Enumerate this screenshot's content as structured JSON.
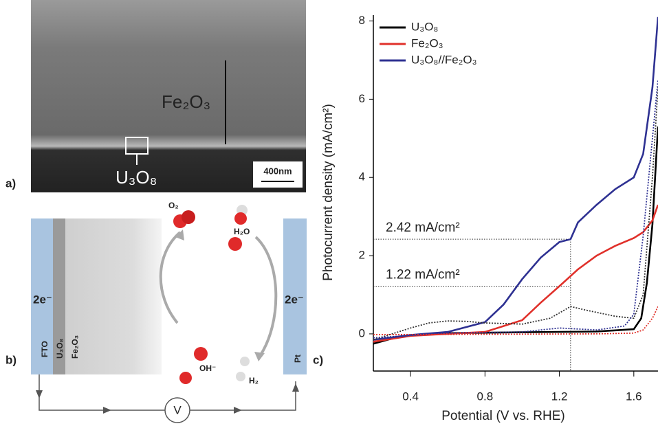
{
  "panel_a": {
    "label": "a)",
    "layer_top": "Fe₂O₃",
    "layer_bottom": "U₃O₈",
    "scale_bar": "400nm"
  },
  "panel_b": {
    "label": "b)",
    "left_electrons": "2e⁻",
    "right_electrons": "2e⁻",
    "fto": "FTO",
    "u3o8": "U₃O₈",
    "fe2o3": "Fe₂O₃",
    "pt": "Pt",
    "o2": "O₂",
    "h2o": "H₂O",
    "oh": "OH⁻",
    "h2": "H₂",
    "meter": "V"
  },
  "chart_data": {
    "type": "line",
    "panel_label": "c)",
    "x_label": "Potential (V vs. RHE)",
    "y_label": "Photocurrent density (mA/cm²)",
    "xlim": [
      0.2,
      1.73
    ],
    "ylim": [
      -0.95,
      8.15
    ],
    "xticks": [
      0.4,
      0.8,
      1.2,
      1.6
    ],
    "yticks": [
      0,
      2,
      4,
      6,
      8
    ],
    "legend": "top-left",
    "series": [
      {
        "name": "U₃O₈",
        "color": "#000000",
        "dash": false,
        "x": [
          0.2,
          0.3,
          0.4,
          0.6,
          1.0,
          1.4,
          1.6,
          1.64,
          1.67,
          1.7,
          1.73
        ],
        "values": [
          -0.25,
          -0.12,
          -0.04,
          0.02,
          0.04,
          0.06,
          0.12,
          0.4,
          1.3,
          2.8,
          5.3
        ]
      },
      {
        "name": "Fe₂O₃",
        "color": "#e0302a",
        "dash": false,
        "x": [
          0.2,
          0.4,
          0.6,
          0.8,
          1.0,
          1.1,
          1.2,
          1.3,
          1.4,
          1.5,
          1.6,
          1.65,
          1.7,
          1.73
        ],
        "values": [
          -0.2,
          -0.05,
          0.0,
          0.05,
          0.35,
          0.8,
          1.22,
          1.65,
          2.0,
          2.25,
          2.45,
          2.6,
          2.9,
          3.3
        ]
      },
      {
        "name": "U₃O₈//Fe₂O₃",
        "color": "#2e3192",
        "dash": false,
        "x": [
          0.2,
          0.4,
          0.6,
          0.8,
          0.9,
          1.0,
          1.1,
          1.2,
          1.26,
          1.3,
          1.4,
          1.5,
          1.6,
          1.65,
          1.7,
          1.73
        ],
        "values": [
          -0.15,
          -0.03,
          0.05,
          0.3,
          0.75,
          1.4,
          1.95,
          2.35,
          2.42,
          2.85,
          3.3,
          3.7,
          4.0,
          4.6,
          6.3,
          8.1
        ]
      },
      {
        "color": "#333333",
        "dash": true,
        "x": [
          0.2,
          0.4,
          0.5,
          0.6,
          0.7,
          0.8,
          1.0,
          1.15,
          1.26,
          1.35,
          1.5,
          1.6,
          1.65,
          1.7,
          1.73
        ],
        "values": [
          -0.15,
          0.15,
          0.28,
          0.33,
          0.32,
          0.28,
          0.25,
          0.4,
          0.7,
          0.6,
          0.45,
          0.4,
          1.0,
          4.0,
          6.3
        ]
      },
      {
        "color": "#2e3192",
        "dash": true,
        "x": [
          0.2,
          0.6,
          1.0,
          1.1,
          1.2,
          1.4,
          1.55,
          1.6,
          1.65,
          1.7,
          1.73
        ],
        "values": [
          -0.1,
          0.02,
          0.05,
          0.1,
          0.15,
          0.1,
          0.2,
          0.5,
          2.5,
          5.0,
          6.5
        ]
      },
      {
        "color": "#e0302a",
        "dash": true,
        "x": [
          0.2,
          1.4,
          1.6,
          1.65,
          1.7,
          1.73
        ],
        "values": [
          -0.02,
          0,
          0.02,
          0.1,
          0.4,
          0.7
        ]
      }
    ],
    "annotations": [
      {
        "text": "2.42 mA/cm²",
        "x": 1.26,
        "y": 2.42
      },
      {
        "text": "1.22 mA/cm²",
        "x": 1.26,
        "y": 1.22
      }
    ]
  }
}
